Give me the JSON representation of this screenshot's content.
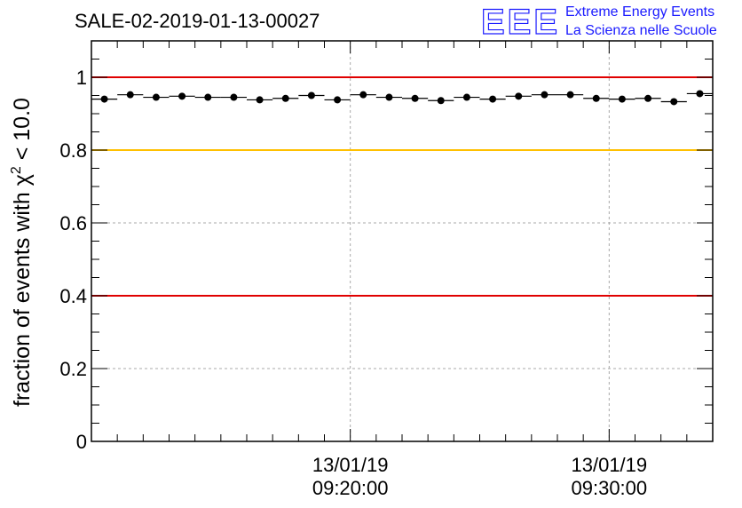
{
  "chart_data": {
    "type": "scatter",
    "title": "SALE-02-2019-01-13-00027",
    "ylabel": "fraction of events with χ² < 10.0",
    "ylabel_main": "fraction of events with χ",
    "ylabel_sup": "2",
    "ylabel_tail": " < 10.0",
    "xlabel": "",
    "ylim": [
      0,
      1.1
    ],
    "y_ticks": [
      "0",
      "0.2",
      "0.4",
      "0.6",
      "0.8",
      "1"
    ],
    "y_tick_values": [
      0,
      0.2,
      0.4,
      0.6,
      0.8,
      1.0
    ],
    "x_ticks": [
      {
        "date": "13/01/19",
        "time": "09:20:00",
        "index": 9
      },
      {
        "date": "13/01/19",
        "time": "09:30:00",
        "index": 19
      }
    ],
    "grid": true,
    "reference_lines": [
      {
        "y": 1.0,
        "color": "#e00000"
      },
      {
        "y": 0.8,
        "color": "#ffc000"
      },
      {
        "y": 0.4,
        "color": "#e00000"
      }
    ],
    "series": [
      {
        "values": [
          0.94,
          0.952,
          0.945,
          0.948,
          0.945,
          0.945,
          0.938,
          0.942,
          0.95,
          0.938,
          0.952,
          0.945,
          0.942,
          0.936,
          0.945,
          0.94,
          0.948,
          0.952,
          0.952,
          0.942,
          0.94,
          0.942,
          0.933,
          0.955
        ]
      }
    ]
  },
  "logo": {
    "mark": "EEE",
    "line1": "Extreme Energy Events",
    "line2": "La Scienza nelle Scuole",
    "color": "#1a1aff"
  }
}
